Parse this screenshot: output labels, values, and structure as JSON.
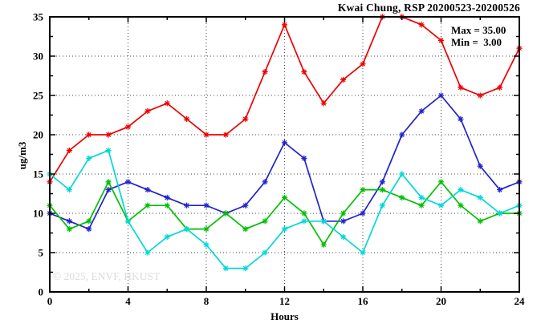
{
  "title": "Kwai Chung, RSP 20200523-20200526",
  "annotation": {
    "max_label": "Max = 35.00",
    "min_label": "Min =  3.00"
  },
  "watermark": "© 2025, ENVF, HKUST",
  "axes": {
    "x_label": "Hours",
    "y_label": "ug/m3"
  },
  "chart_data": {
    "type": "line",
    "title": "Kwai Chung, RSP 20200523-20200526",
    "xlabel": "Hours",
    "ylabel": "ug/m3",
    "xlim": [
      0,
      24
    ],
    "ylim": [
      0,
      35
    ],
    "x_major_ticks": [
      0,
      4,
      8,
      12,
      16,
      20,
      24
    ],
    "x_minor_ticks": [
      2,
      6,
      10,
      14,
      18,
      22
    ],
    "y_major_ticks": [
      0,
      5,
      10,
      15,
      20,
      25,
      30,
      35
    ],
    "y_minor_ticks": [
      2.5,
      7.5,
      12.5,
      17.5,
      22.5,
      27.5,
      32.5
    ],
    "x_grid": [
      4,
      8,
      12,
      16,
      20
    ],
    "y_grid": [
      5,
      10,
      15,
      20,
      25,
      30
    ],
    "legend": "none",
    "stat_max": 35.0,
    "stat_min": 3.0,
    "x": [
      0,
      1,
      2,
      3,
      4,
      5,
      6,
      7,
      8,
      9,
      10,
      11,
      12,
      13,
      14,
      15,
      16,
      17,
      18,
      19,
      20,
      21,
      22,
      23,
      24
    ],
    "series": [
      {
        "name": "red",
        "color": "#ee0000",
        "values": [
          14,
          18,
          20,
          20,
          21,
          23,
          24,
          22,
          20,
          20,
          22,
          28,
          34,
          28,
          24,
          27,
          29,
          35,
          35,
          34,
          32,
          26,
          25,
          26,
          31
        ]
      },
      {
        "name": "blue",
        "color": "#2222cc",
        "values": [
          10,
          9,
          8,
          13,
          14,
          13,
          12,
          11,
          11,
          10,
          11,
          14,
          19,
          17,
          9,
          9,
          10,
          14,
          20,
          23,
          25,
          22,
          16,
          13,
          14
        ]
      },
      {
        "name": "green",
        "color": "#00c000",
        "values": [
          11,
          8,
          9,
          14,
          9,
          11,
          11,
          8,
          8,
          10,
          8,
          9,
          12,
          10,
          6,
          10,
          13,
          13,
          12,
          11,
          14,
          11,
          9,
          10,
          10
        ]
      },
      {
        "name": "cyan",
        "color": "#00d8d8",
        "values": [
          15,
          13,
          17,
          18,
          9,
          5,
          7,
          8,
          6,
          3,
          3,
          5,
          8,
          9,
          9,
          7,
          5,
          11,
          15,
          12,
          11,
          13,
          12,
          10,
          11
        ]
      }
    ]
  }
}
